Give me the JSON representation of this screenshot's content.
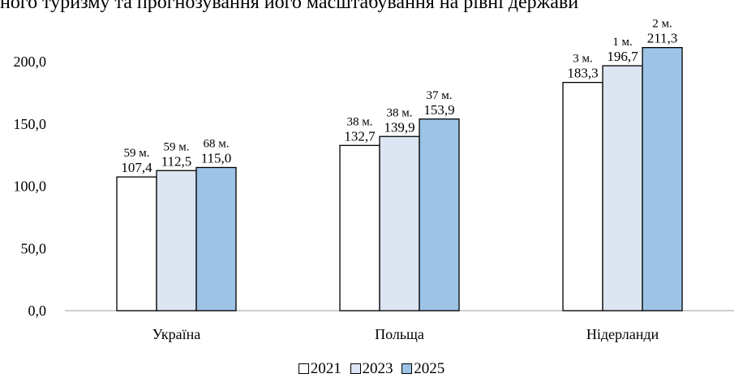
{
  "top_text": "ного туризму та прогнозування його масштабування на рівні держави",
  "chart_data": {
    "type": "bar",
    "categories": [
      "Україна",
      "Польща",
      "Нідерланди"
    ],
    "series": [
      {
        "name": "2021",
        "color": "#ffffff",
        "values": [
          107.4,
          132.7,
          183.3
        ],
        "ranks": [
          "59 м.",
          "38 м.",
          "3 м."
        ],
        "labels": [
          "107,4",
          "132,7",
          "183,3"
        ]
      },
      {
        "name": "2023",
        "color": "#dce6f2",
        "values": [
          112.5,
          139.9,
          196.7
        ],
        "ranks": [
          "59 м.",
          "38 м.",
          "1 м."
        ],
        "labels": [
          "112,5",
          "139,9",
          "196,7"
        ]
      },
      {
        "name": "2025",
        "color": "#9dc3e6",
        "values": [
          115.0,
          153.9,
          211.3
        ],
        "ranks": [
          "68 м.",
          "37 м.",
          "2 м."
        ],
        "labels": [
          "115,0",
          "153,9",
          "211,3"
        ]
      }
    ],
    "yticks": [
      0,
      50,
      100,
      150,
      200
    ],
    "ytick_labels": [
      "0,0",
      "50,0",
      "100,0",
      "150,0",
      "200,0"
    ],
    "ylim": [
      0,
      200
    ],
    "grid": false,
    "legend_position": "bottom"
  }
}
